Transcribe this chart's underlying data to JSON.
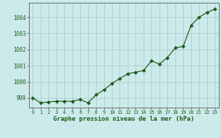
{
  "x": [
    0,
    1,
    2,
    3,
    4,
    5,
    6,
    7,
    8,
    9,
    10,
    11,
    12,
    13,
    14,
    15,
    16,
    17,
    18,
    19,
    20,
    21,
    22,
    23
  ],
  "y": [
    999.0,
    998.7,
    998.75,
    998.8,
    998.8,
    998.8,
    998.9,
    998.7,
    999.2,
    999.5,
    999.9,
    1000.2,
    1000.5,
    1000.6,
    1000.7,
    1001.3,
    1001.1,
    1001.5,
    1002.1,
    1002.2,
    1003.5,
    1004.0,
    1004.3,
    1004.5
  ],
  "line_color": "#1a5c1a",
  "marker": "D",
  "marker_size": 2.5,
  "background_color": "#cceaea",
  "grid_color": "#b0d0d0",
  "xlabel": "Graphe pression niveau de la mer (hPa)",
  "xlabel_color": "#1a5c1a",
  "tick_color": "#1a5c1a",
  "yticks": [
    999,
    1000,
    1001,
    1002,
    1003,
    1004
  ],
  "ylim": [
    998.4,
    1004.9
  ],
  "xlim": [
    -0.5,
    23.5
  ]
}
